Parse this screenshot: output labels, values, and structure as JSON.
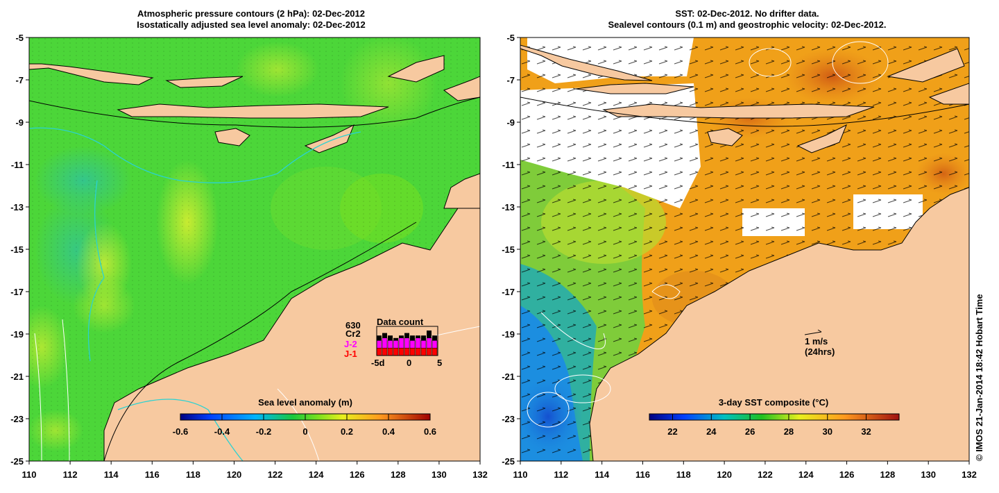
{
  "left_panel": {
    "title_line1": "Atmospheric pressure contours (2 hPa): 02-Dec-2012",
    "title_line2": "Isostatically adjusted sea level anomaly: 02-Dec-2012",
    "colorbar": {
      "label": "Sea level anomaly (m)",
      "ticks": [
        "-0.6",
        "-0.4",
        "-0.2",
        "0",
        "0.2",
        "0.4",
        "0.6"
      ],
      "min": -0.6,
      "max": 0.6
    },
    "data_count": {
      "title": "Data count",
      "top_value": "630",
      "missions": [
        "Cr2",
        "J-2",
        "J-1"
      ],
      "mission_colors": [
        "#000000",
        "#ff00ff",
        "#ff0000"
      ],
      "axis_labels": [
        "-5d",
        "0",
        "5"
      ],
      "bars_cr2": [
        2,
        2,
        2,
        1,
        1,
        2,
        2,
        1,
        2,
        3,
        2
      ],
      "bars_j2": [
        3,
        4,
        3,
        3,
        4,
        4,
        3,
        4,
        3,
        4,
        3
      ],
      "bars_j1": [
        3,
        3,
        3,
        3,
        3,
        3,
        3,
        3,
        3,
        3,
        3
      ]
    }
  },
  "right_panel": {
    "title_line1": "SST: 02-Dec-2012. No drifter data.",
    "title_line2": "Sealevel contours (0.1 m) and geostrophic velocity: 02-Dec-2012.",
    "colorbar": {
      "label": "3-day SST composite (°C)",
      "ticks": [
        "22",
        "24",
        "26",
        "28",
        "30",
        "32"
      ],
      "min": 20.8,
      "max": 33.7
    },
    "velocity_key": {
      "speed": "1 m/s",
      "duration": "(24hrs)"
    }
  },
  "axes": {
    "lon_ticks": [
      "110",
      "112",
      "114",
      "116",
      "118",
      "120",
      "122",
      "124",
      "126",
      "128",
      "130",
      "132"
    ],
    "lat_ticks": [
      "-5",
      "-7",
      "-9",
      "-11",
      "-13",
      "-15",
      "-17",
      "-19",
      "-21",
      "-23",
      "-25"
    ]
  },
  "credit": "© IMOS 21-Jan-2014 18:42 Hobart Time",
  "colors": {
    "land": "#f7c9a0",
    "sla_base": "#4cd639",
    "sst_warm": "#f0a019",
    "sst_cool": "#7fcc3a",
    "sst_cold": "#1a76d6",
    "contour_cyan": "#2ad2d2"
  }
}
